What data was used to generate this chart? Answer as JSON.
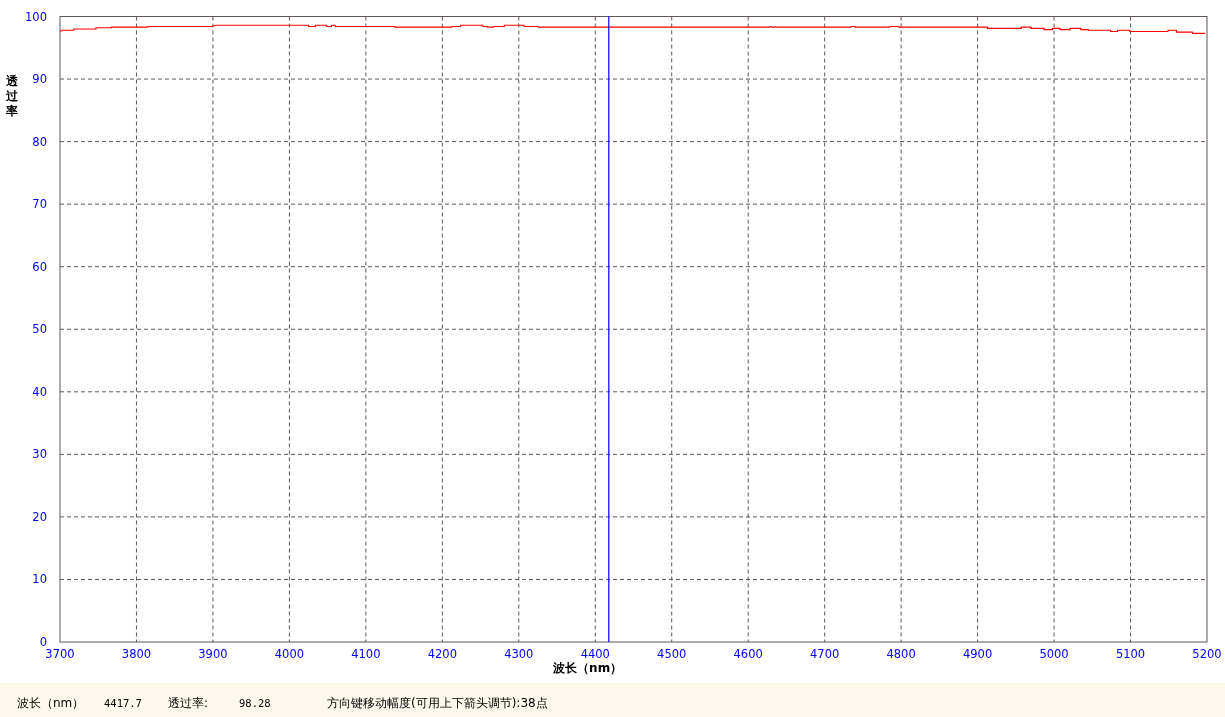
{
  "chart_data": {
    "type": "line",
    "xlabel": "波长（nm）",
    "ylabel": "透过率",
    "x": [
      3701,
      3702,
      3718,
      3718,
      3747,
      3747,
      3767,
      3767,
      3815,
      3815,
      3898,
      3904,
      4025,
      4025,
      4034,
      4034,
      4049,
      4049,
      4055,
      4055,
      4060,
      4060,
      4138,
      4138,
      4212,
      4212,
      4224,
      4224,
      4253,
      4253,
      4259,
      4259,
      4267,
      4267,
      4281,
      4281,
      4307,
      4307,
      4325,
      4325,
      4628,
      4629,
      4631,
      4734,
      4734,
      4740,
      4740,
      4785,
      4785,
      4797,
      4797,
      4913,
      4913,
      4957,
      4957,
      4970,
      4970,
      4987,
      4987,
      4998,
      4998,
      5008,
      5008,
      5021,
      5021,
      5035,
      5035,
      5045,
      5045,
      5074,
      5074,
      5083,
      5083,
      5099,
      5099,
      5149,
      5149,
      5160,
      5160,
      5181,
      5181,
      5197
    ],
    "series": [
      {
        "color": "#ff0000",
        "values": [
          97.6,
          97.8,
          97.8,
          98.0,
          98.0,
          98.2,
          98.2,
          98.3,
          98.3,
          98.4,
          98.4,
          98.6,
          98.6,
          98.4,
          98.4,
          98.6,
          98.6,
          98.4,
          98.4,
          98.6,
          98.6,
          98.4,
          98.4,
          98.3,
          98.3,
          98.4,
          98.4,
          98.6,
          98.6,
          98.4,
          98.4,
          98.3,
          98.3,
          98.4,
          98.4,
          98.6,
          98.6,
          98.4,
          98.4,
          98.3,
          98.3,
          98.4,
          98.3,
          98.3,
          98.4,
          98.4,
          98.3,
          98.3,
          98.4,
          98.4,
          98.3,
          98.3,
          98.1,
          98.1,
          98.3,
          98.3,
          98.1,
          98.1,
          97.9,
          97.9,
          98.1,
          98.1,
          97.9,
          97.9,
          98.1,
          98.1,
          97.9,
          97.9,
          97.8,
          97.8,
          97.6,
          97.6,
          97.8,
          97.8,
          97.6,
          97.6,
          97.8,
          97.8,
          97.5,
          97.5,
          97.3,
          97.3
        ]
      }
    ],
    "xlim": [
      3700,
      5200
    ],
    "ylim": [
      0,
      100
    ],
    "xticks": [
      3700,
      3800,
      3900,
      4000,
      4100,
      4200,
      4300,
      4400,
      4500,
      4600,
      4700,
      4800,
      4900,
      5000,
      5100,
      5200
    ],
    "yticks": [
      0,
      10,
      20,
      30,
      40,
      50,
      60,
      70,
      80,
      90,
      100
    ],
    "grid": true,
    "marker": "none",
    "line_style": "solid",
    "ref_lines": [
      {
        "axis": "x",
        "value": 4417.7,
        "color": "#0000ff"
      }
    ],
    "annotations": [
      "波长（nm）",
      "4417.7",
      "透过率:",
      "98.28",
      "方向键移动幅度(可用上下箭头调节):38点"
    ]
  }
}
